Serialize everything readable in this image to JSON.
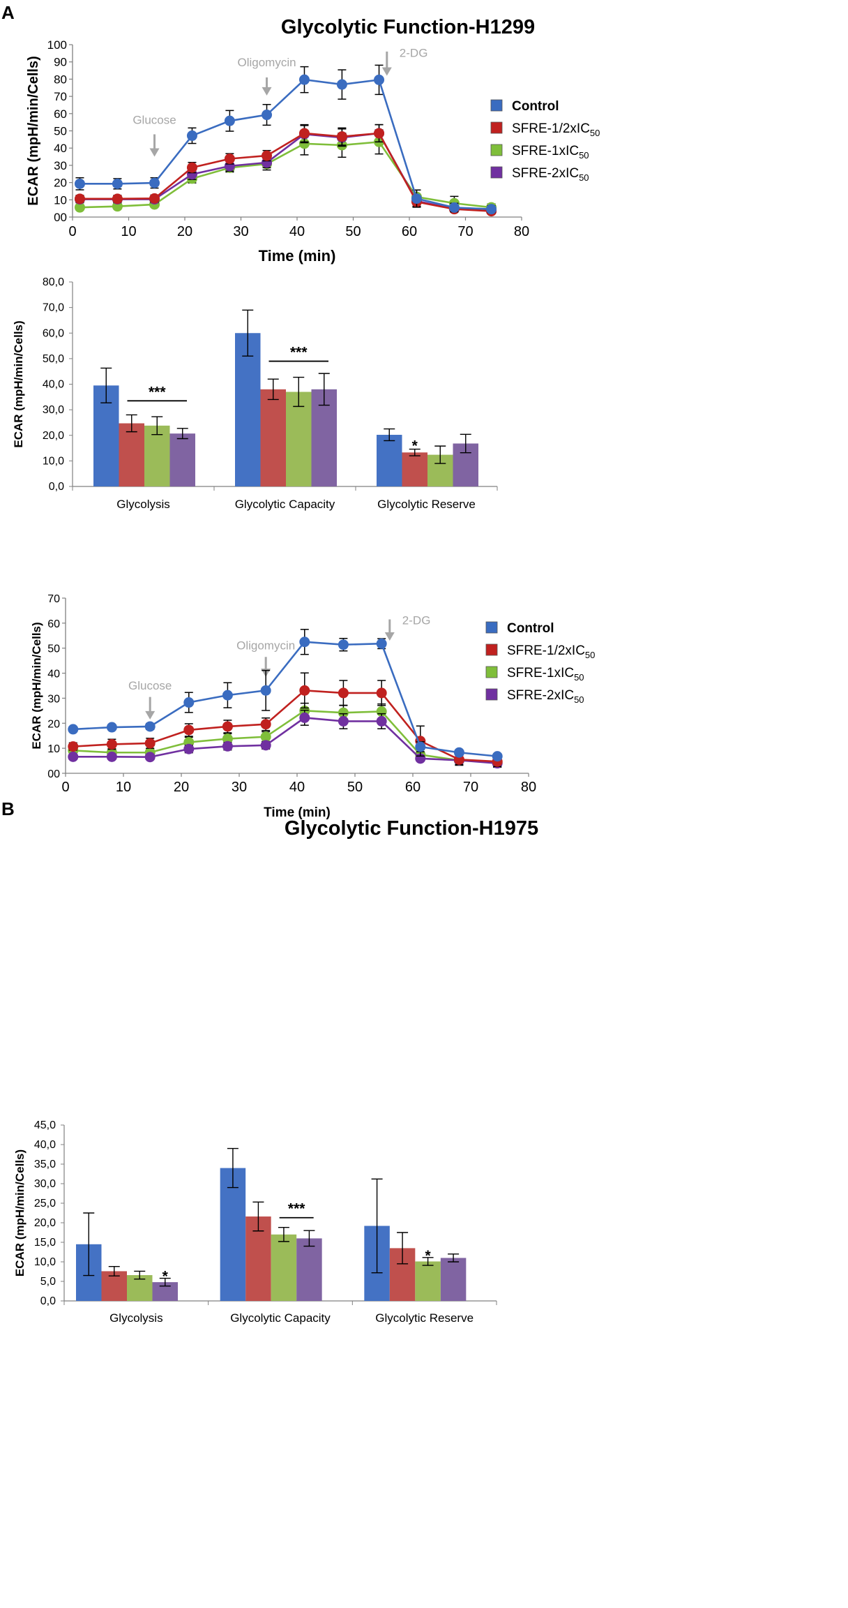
{
  "panels": [
    {
      "letter": "A",
      "title": "Glycolytic Function-H1299"
    },
    {
      "letter": "B",
      "title": "Glycolytic Function-H1975"
    }
  ],
  "colors": {
    "Control": "#4472C4",
    "SFRE-1/2xIC50": "#C0504D",
    "SFRE-1xIC50": "#9BBB59",
    "SFRE-2xIC50": "#8064A2",
    "line_Control": "#3A6CC0",
    "line_SFRE-1/2xIC50": "#C0211F",
    "line_SFRE-1xIC50": "#7FBE3A",
    "line_SFRE-2xIC50": "#7030A0",
    "annotation": "#A6A6A6",
    "axis": "#808080"
  },
  "chart_data": [
    {
      "type": "line",
      "id": "A-line",
      "title": "Glycolytic Function-H1299",
      "xlabel": "Time (min)",
      "ylabel": "ECAR (mpH/min/Cells)",
      "xlim": [
        0,
        80
      ],
      "ylim": [
        0,
        100
      ],
      "xticks": [
        0,
        10,
        20,
        30,
        40,
        50,
        60,
        70,
        80
      ],
      "yticks": [
        0,
        10,
        20,
        30,
        40,
        50,
        60,
        70,
        80,
        90,
        100
      ],
      "ytick_labels": [
        "00",
        "10",
        "20",
        "30",
        "40",
        "50",
        "60",
        "70",
        "80",
        "90",
        "100"
      ],
      "x": [
        1.3,
        8,
        14.6,
        21.3,
        28,
        34.6,
        41.3,
        48,
        54.6,
        61.3,
        68,
        74.6
      ],
      "series": [
        {
          "name": "Control",
          "legend_main": "Control",
          "legend_sub": "",
          "values": [
            19.3,
            19.3,
            19.8,
            47.2,
            55.8,
            59.3,
            79.7,
            76.9,
            79.6,
            10.7,
            5.5,
            4.6
          ],
          "errors": [
            3.5,
            3,
            3,
            4.5,
            6,
            6,
            7.5,
            8.5,
            8.5,
            5,
            2.5,
            2
          ]
        },
        {
          "name": "SFRE-1/2xIC50",
          "legend_main": "SFRE-1/2xIC",
          "legend_sub": "50",
          "values": [
            10.6,
            10.6,
            10.8,
            28.7,
            33.8,
            35.6,
            48.6,
            46.7,
            48.6,
            8.8,
            4.6,
            3.4
          ],
          "errors": [
            2,
            2,
            2,
            3,
            3,
            3,
            5,
            5,
            5,
            3,
            1.5,
            1.5
          ]
        },
        {
          "name": "SFRE-1xIC50",
          "legend_main": "SFRE-1xIC",
          "legend_sub": "50",
          "values": [
            5.6,
            6.2,
            7.3,
            22.3,
            28.6,
            30.8,
            42.6,
            41.7,
            43.6,
            11.7,
            8,
            5.6
          ],
          "errors": [
            1.5,
            1.5,
            1.5,
            2.5,
            2.5,
            3.5,
            6.5,
            7,
            7,
            4,
            4,
            2
          ]
        },
        {
          "name": "SFRE-2xIC50",
          "legend_main": "SFRE-2xIC",
          "legend_sub": "50",
          "values": [
            10.3,
            10.3,
            10.3,
            24.8,
            29.6,
            31.6,
            48.1,
            46.1,
            48.6,
            9.3,
            4.8,
            3.5
          ],
          "errors": [
            2,
            2,
            2,
            3,
            3,
            3,
            5,
            5,
            5,
            3,
            1.5,
            1.5
          ]
        }
      ],
      "annotations": [
        {
          "label": "Glucose",
          "x": 14.6,
          "y_text": 54,
          "y_arrow_top": 48,
          "y_arrow_bottom": 35
        },
        {
          "label": "Oligomycin",
          "x": 34.6,
          "y_text": 87.5,
          "y_arrow_top": 81,
          "y_arrow_bottom": 70.5
        },
        {
          "label": "2-DG",
          "x": 56,
          "y_text": 93,
          "y_arrow_top": 96,
          "y_arrow_bottom": 82
        }
      ]
    },
    {
      "type": "bar",
      "id": "A-bar",
      "ylabel": "ECAR (mpH/min/Cells)",
      "ylim": [
        0,
        80
      ],
      "yticks": [
        0,
        10,
        20,
        30,
        40,
        50,
        60,
        70,
        80
      ],
      "ytick_labels": [
        "0,0",
        "10,0",
        "20,0",
        "30,0",
        "40,0",
        "50,0",
        "60,0",
        "70,0",
        "80,0"
      ],
      "categories": [
        "Glycolysis",
        "Glycolytic Capacity",
        "Glycolytic Reserve"
      ],
      "series": [
        {
          "name": "Control",
          "values": [
            39.5,
            60,
            20.2
          ],
          "errors": [
            6.8,
            9,
            2.3
          ]
        },
        {
          "name": "SFRE-1/2xIC50",
          "values": [
            24.7,
            38,
            13.3
          ],
          "errors": [
            3.3,
            4,
            1.3
          ]
        },
        {
          "name": "SFRE-1xIC50",
          "values": [
            23.8,
            37,
            12.4
          ],
          "errors": [
            3.5,
            5.7,
            3.4
          ]
        },
        {
          "name": "SFRE-2xIC50",
          "values": [
            20.7,
            38,
            16.8
          ],
          "errors": [
            2,
            6.2,
            3.6
          ]
        }
      ],
      "significance": [
        {
          "label": "***",
          "category": 0,
          "from_series": 1,
          "to_series": 3,
          "y": 33.5
        },
        {
          "label": "***",
          "category": 1,
          "from_series": 1,
          "to_series": 3,
          "y": 49
        },
        {
          "label": "*",
          "category": 2,
          "series": 1,
          "y": 16.2
        }
      ]
    },
    {
      "type": "line",
      "id": "B-line",
      "title": "Glycolytic Function-H1975",
      "xlabel": "Time (min)",
      "ylabel": "ECAR (mpH/min/Cells)",
      "xlim": [
        0,
        80
      ],
      "ylim": [
        0,
        70
      ],
      "xticks": [
        0,
        10,
        20,
        30,
        40,
        50,
        60,
        70,
        80
      ],
      "yticks": [
        0,
        10,
        20,
        30,
        40,
        50,
        60,
        70
      ],
      "ytick_labels": [
        "00",
        "10",
        "20",
        "30",
        "40",
        "50",
        "60",
        "70"
      ],
      "x": [
        1.3,
        8,
        14.6,
        21.3,
        28,
        34.6,
        41.3,
        48,
        54.6,
        61.3,
        68,
        74.6
      ],
      "series": [
        {
          "name": "Control",
          "legend_main": "Control",
          "legend_sub": "",
          "values": [
            17.6,
            18.4,
            18.7,
            28.3,
            31.2,
            33.1,
            52.5,
            51.4,
            51.8,
            10.6,
            8.3,
            6.8
          ],
          "errors": [
            1,
            1,
            1.2,
            4,
            5,
            8,
            5,
            2.5,
            2,
            2,
            1,
            1
          ]
        },
        {
          "name": "SFRE-1/2xIC50",
          "legend_main": "SFRE-1/2xIC",
          "legend_sub": "50",
          "values": [
            10.7,
            11.6,
            12,
            17.3,
            18.7,
            19.6,
            33.1,
            32.1,
            32.1,
            12.9,
            5.5,
            4.7
          ],
          "errors": [
            1.5,
            2,
            2,
            2.5,
            2.5,
            2.5,
            7,
            5,
            5,
            6,
            2,
            2
          ]
        },
        {
          "name": "SFRE-1xIC50",
          "legend_main": "SFRE-1xIC",
          "legend_sub": "50",
          "values": [
            9.1,
            8.3,
            8.3,
            12.4,
            13.8,
            14.6,
            25,
            24.2,
            24.7,
            7.4,
            5.2,
            4.4
          ],
          "errors": [
            1.5,
            1.5,
            1.5,
            2,
            2,
            2,
            3,
            3,
            3,
            2,
            2,
            2
          ]
        },
        {
          "name": "SFRE-2xIC50",
          "legend_main": "SFRE-2xIC",
          "legend_sub": "50",
          "values": [
            6.6,
            6.6,
            6.5,
            9.7,
            10.8,
            11.2,
            22.2,
            20.8,
            20.8,
            5.9,
            5.2,
            4
          ],
          "errors": [
            1,
            1,
            1,
            1.5,
            1.5,
            1.5,
            3,
            3,
            3,
            1,
            1,
            1
          ]
        }
      ],
      "annotations": [
        {
          "label": "Glucose",
          "x": 14.6,
          "y_text": 33.5,
          "y_arrow_top": 30.5,
          "y_arrow_bottom": 21.5
        },
        {
          "label": "Oligomycin",
          "x": 34.6,
          "y_text": 49.5,
          "y_arrow_top": 46.5,
          "y_arrow_bottom": 38.5
        },
        {
          "label": "2-DG",
          "x": 56,
          "y_text": 59.5,
          "y_arrow_top": 61.5,
          "y_arrow_bottom": 53
        }
      ]
    },
    {
      "type": "bar",
      "id": "B-bar",
      "ylabel": "ECAR (mpH/min/Cells)",
      "ylim": [
        0,
        45
      ],
      "yticks": [
        0,
        5,
        10,
        15,
        20,
        25,
        30,
        35,
        40,
        45
      ],
      "ytick_labels": [
        "0,0",
        "5,0",
        "10,0",
        "15,0",
        "20,0",
        "25,0",
        "30,0",
        "35,0",
        "40,0",
        "45,0"
      ],
      "categories": [
        "Glycolysis",
        "Glycolytic Capacity",
        "Glycolytic Reserve"
      ],
      "series": [
        {
          "name": "Control",
          "values": [
            14.5,
            34,
            19.2
          ],
          "errors": [
            8,
            5,
            12
          ]
        },
        {
          "name": "SFRE-1/2xIC50",
          "values": [
            7.6,
            21.6,
            13.5
          ],
          "errors": [
            1.2,
            3.7,
            4
          ]
        },
        {
          "name": "SFRE-1xIC50",
          "values": [
            6.6,
            17,
            10.1
          ],
          "errors": [
            1,
            1.8,
            1
          ]
        },
        {
          "name": "SFRE-2xIC50",
          "values": [
            4.8,
            16,
            11
          ],
          "errors": [
            1,
            2,
            1
          ]
        }
      ],
      "significance": [
        {
          "label": "*",
          "category": 0,
          "series": 3,
          "y": 6.5
        },
        {
          "label": "***",
          "category": 1,
          "from_series": 2,
          "to_series": 3,
          "y": 21.3
        },
        {
          "label": "*",
          "category": 2,
          "series": 2,
          "y": 11.8
        }
      ]
    }
  ]
}
